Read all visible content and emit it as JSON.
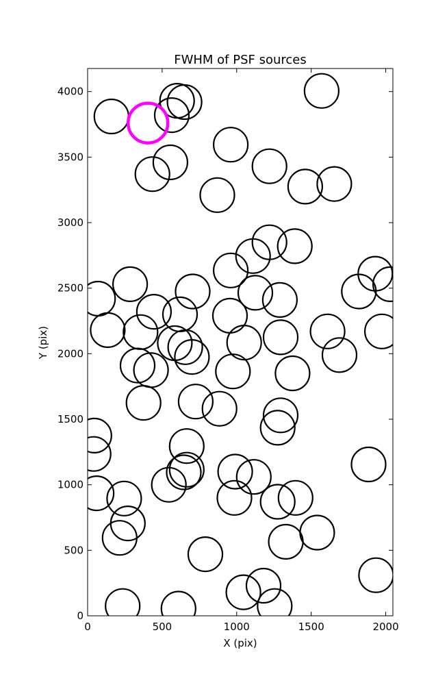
{
  "chart_data": {
    "type": "scatter",
    "title": "FWHM of PSF sources",
    "xlabel": "X (pix)",
    "ylabel": "Y (pix)",
    "xlim": [
      0,
      2048
    ],
    "ylim": [
      0,
      4176
    ],
    "xticks": [
      0,
      500,
      1000,
      1500,
      2000
    ],
    "yticks": [
      0,
      500,
      1000,
      1500,
      2000,
      2500,
      3000,
      3500,
      4000
    ],
    "grid": false,
    "marker": "open circle",
    "series": [
      {
        "name": "",
        "color": "#000000",
        "points": [
          {
            "x": 160,
            "y": 3810
          },
          {
            "x": 600,
            "y": 3930
          },
          {
            "x": 650,
            "y": 3920
          },
          {
            "x": 565,
            "y": 3820
          },
          {
            "x": 1570,
            "y": 4005
          },
          {
            "x": 960,
            "y": 3595
          },
          {
            "x": 555,
            "y": 3460
          },
          {
            "x": 435,
            "y": 3370
          },
          {
            "x": 1220,
            "y": 3430
          },
          {
            "x": 1460,
            "y": 3275
          },
          {
            "x": 1655,
            "y": 3295
          },
          {
            "x": 870,
            "y": 3210
          },
          {
            "x": 1220,
            "y": 2850
          },
          {
            "x": 1390,
            "y": 2820
          },
          {
            "x": 1110,
            "y": 2745
          },
          {
            "x": 960,
            "y": 2635
          },
          {
            "x": 1930,
            "y": 2610
          },
          {
            "x": 2030,
            "y": 2530
          },
          {
            "x": 1820,
            "y": 2475
          },
          {
            "x": 285,
            "y": 2530
          },
          {
            "x": 70,
            "y": 2420
          },
          {
            "x": 705,
            "y": 2475
          },
          {
            "x": 1125,
            "y": 2465
          },
          {
            "x": 1290,
            "y": 2410
          },
          {
            "x": 445,
            "y": 2320
          },
          {
            "x": 620,
            "y": 2300
          },
          {
            "x": 955,
            "y": 2290
          },
          {
            "x": 135,
            "y": 2180
          },
          {
            "x": 355,
            "y": 2165
          },
          {
            "x": 1610,
            "y": 2170
          },
          {
            "x": 1975,
            "y": 2170
          },
          {
            "x": 1295,
            "y": 2125
          },
          {
            "x": 1050,
            "y": 2085
          },
          {
            "x": 585,
            "y": 2080
          },
          {
            "x": 655,
            "y": 2050
          },
          {
            "x": 1690,
            "y": 1990
          },
          {
            "x": 700,
            "y": 1975
          },
          {
            "x": 335,
            "y": 1910
          },
          {
            "x": 425,
            "y": 1875
          },
          {
            "x": 975,
            "y": 1865
          },
          {
            "x": 1375,
            "y": 1850
          },
          {
            "x": 725,
            "y": 1635
          },
          {
            "x": 375,
            "y": 1625
          },
          {
            "x": 885,
            "y": 1580
          },
          {
            "x": 1295,
            "y": 1530
          },
          {
            "x": 1275,
            "y": 1435
          },
          {
            "x": 45,
            "y": 1375
          },
          {
            "x": 40,
            "y": 1235
          },
          {
            "x": 665,
            "y": 1295
          },
          {
            "x": 665,
            "y": 1115
          },
          {
            "x": 645,
            "y": 1095
          },
          {
            "x": 1885,
            "y": 1155
          },
          {
            "x": 990,
            "y": 1100
          },
          {
            "x": 1115,
            "y": 1060
          },
          {
            "x": 545,
            "y": 1000
          },
          {
            "x": 60,
            "y": 935
          },
          {
            "x": 245,
            "y": 895
          },
          {
            "x": 985,
            "y": 900
          },
          {
            "x": 1395,
            "y": 900
          },
          {
            "x": 1275,
            "y": 870
          },
          {
            "x": 270,
            "y": 705
          },
          {
            "x": 215,
            "y": 595
          },
          {
            "x": 1540,
            "y": 635
          },
          {
            "x": 1330,
            "y": 565
          },
          {
            "x": 790,
            "y": 470
          },
          {
            "x": 1935,
            "y": 310
          },
          {
            "x": 1045,
            "y": 180
          },
          {
            "x": 1180,
            "y": 230
          },
          {
            "x": 1255,
            "y": 75
          },
          {
            "x": 235,
            "y": 75
          },
          {
            "x": 610,
            "y": 55
          }
        ]
      },
      {
        "name": "",
        "color": "#ff00ff",
        "points": [
          {
            "x": 405,
            "y": 3760
          }
        ]
      }
    ]
  }
}
